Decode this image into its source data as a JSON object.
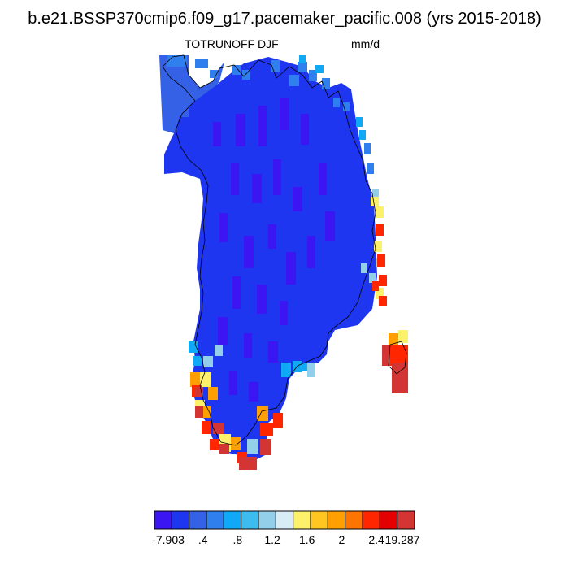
{
  "header": {
    "title": "b.e21.BSSP370cmip6.f09_g17.pacemaker_pacific.008 (yrs 2015-2018)",
    "variable": "TOTRUNOFF DJF",
    "units": "mm/d"
  },
  "colorbar": {
    "colors": [
      "#3b16f2",
      "#1f36f0",
      "#3561e6",
      "#2f7fee",
      "#10a9f5",
      "#3dbcef",
      "#94cfea",
      "#d8ecf5",
      "#fdf06a",
      "#ffc520",
      "#ffa000",
      "#fd7400",
      "#ff2600",
      "#e40000",
      "#d33434"
    ],
    "labels": [
      "-7.903",
      ".4",
      ".8",
      "1.2",
      "1.6",
      "2",
      "2.4",
      "19.287"
    ]
  },
  "map": {
    "region": "Greenland",
    "colors": {
      "interior": "#1f36f0",
      "interior_dark": "#3b16f2",
      "northwest": "#3561e6",
      "coast_light": "#2f7fee",
      "coast_cyan": "#10a9f5",
      "coast_pale": "#94cfea",
      "coast_yellow": "#fdf06a",
      "coast_orange": "#ffa000",
      "coast_red": "#ff2600",
      "coast_darkred": "#d33434"
    }
  }
}
